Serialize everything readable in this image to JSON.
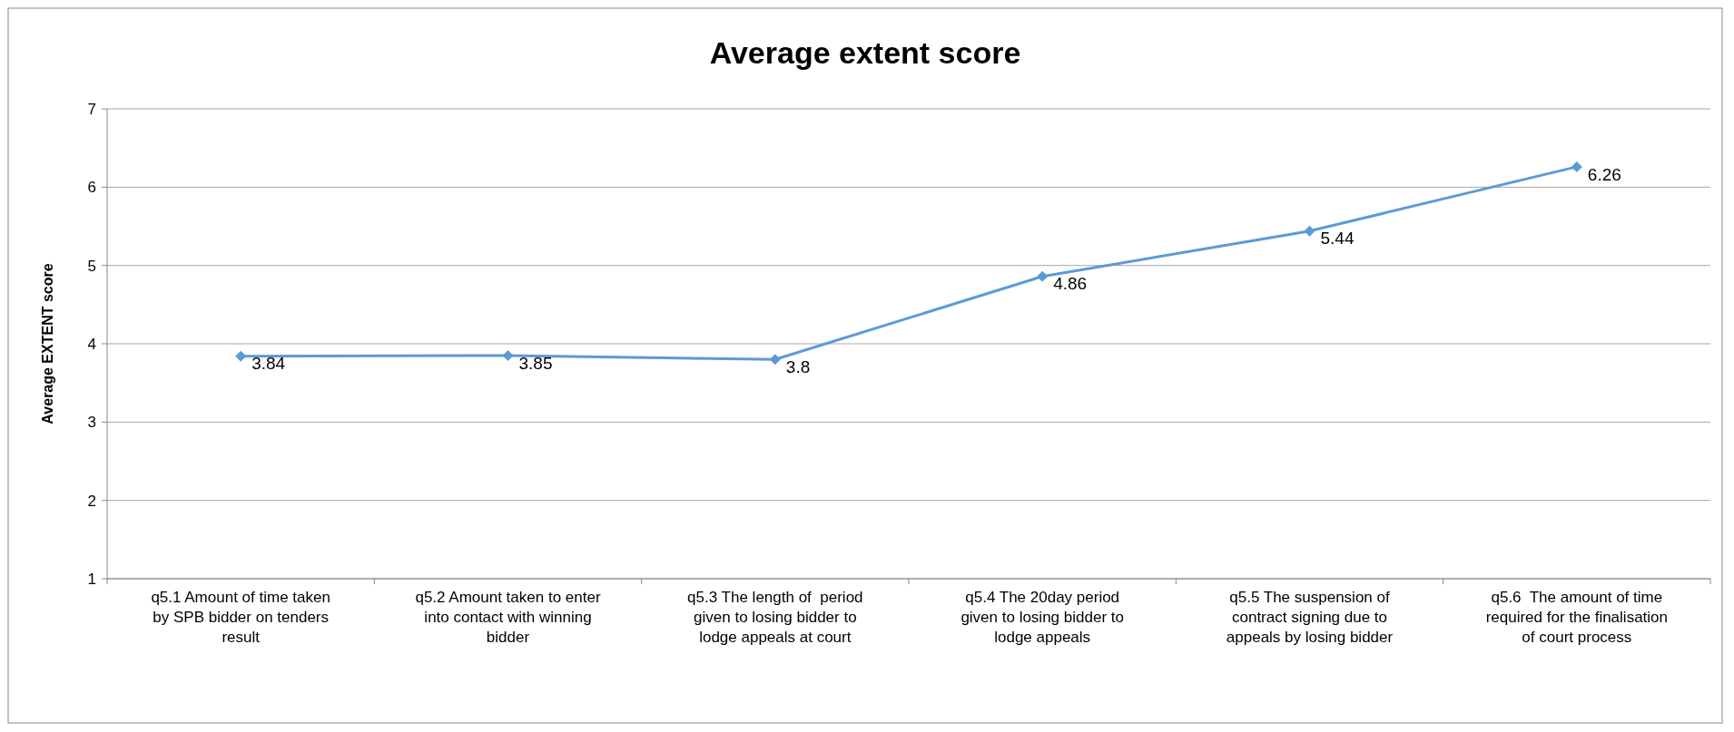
{
  "chart_data": {
    "type": "line",
    "title": "Average extent score",
    "ylabel": "Average EXTENT score",
    "categories": [
      "q5.1 Amount of time taken by SPB bidder on tenders result",
      "q5.2 Amount taken to enter into contact with winning bidder",
      "q5.3 The length of  period given to losing bidder to lodge appeals at court",
      "q5.4 The 20day period given to losing bidder to lodge appeals",
      "q5.5 The suspension of contract signing due to appeals by losing bidder",
      "q5.6  The amount of time required for the finalisation of court process"
    ],
    "series": [
      {
        "color": "#5b9bd5",
        "values": [
          3.84,
          3.85,
          3.8,
          4.86,
          5.44,
          6.26
        ]
      }
    ],
    "ylim": [
      1,
      7
    ],
    "yticks": [
      1,
      2,
      3,
      4,
      5,
      6,
      7
    ],
    "grid": "y",
    "marker": "diamond",
    "data_labels": true
  }
}
